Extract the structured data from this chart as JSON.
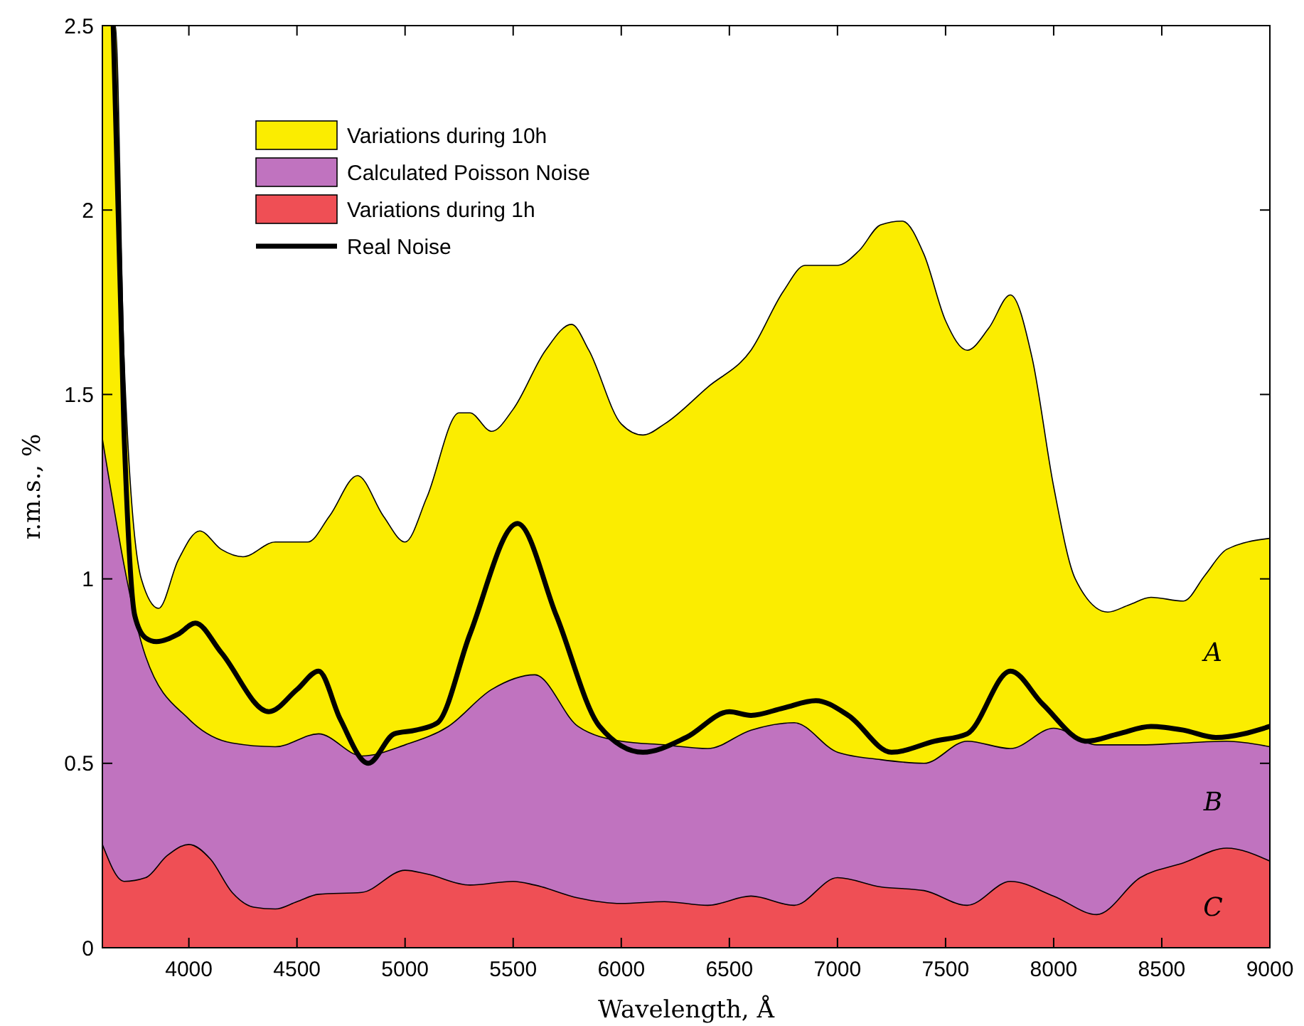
{
  "chart_data": {
    "type": "area",
    "xlabel": "Wavelength, Å",
    "ylabel": "r.m.s., %",
    "xlim": [
      3600,
      9000
    ],
    "xticks": [
      4000,
      4500,
      5000,
      5500,
      6000,
      6500,
      7000,
      7500,
      8000,
      8500,
      9000
    ],
    "ylim": [
      0,
      2.5
    ],
    "yticks": [
      0,
      0.5,
      1,
      1.5,
      2,
      2.5
    ],
    "grid": false,
    "legend": "top left",
    "series": [
      {
        "name": "Variations during 10h",
        "color": "#fbed00",
        "x": [
          3600,
          3660,
          3700,
          3780,
          3860,
          3950,
          4050,
          4150,
          4250,
          4400,
          4550,
          4650,
          4780,
          4900,
          5000,
          5100,
          5250,
          5300,
          5400,
          5500,
          5650,
          5770,
          5850,
          6000,
          6100,
          6200,
          6400,
          6600,
          6750,
          6850,
          7000,
          7100,
          7200,
          7300,
          7400,
          7500,
          7600,
          7700,
          7800,
          7900,
          8000,
          8100,
          8250,
          8350,
          8450,
          8600,
          8700,
          8800,
          9000
        ],
        "values": [
          2.5,
          2.5,
          1.6,
          1.0,
          0.92,
          1.05,
          1.13,
          1.08,
          1.06,
          1.1,
          1.1,
          1.17,
          1.28,
          1.17,
          1.1,
          1.22,
          1.45,
          1.45,
          1.4,
          1.46,
          1.62,
          1.69,
          1.62,
          1.42,
          1.39,
          1.42,
          1.52,
          1.62,
          1.78,
          1.85,
          1.85,
          1.89,
          1.96,
          1.97,
          1.88,
          1.7,
          1.62,
          1.68,
          1.77,
          1.6,
          1.25,
          1.0,
          0.91,
          0.93,
          0.95,
          0.94,
          1.01,
          1.08,
          1.11
        ]
      },
      {
        "name": "Calculated Poisson Noise",
        "color": "#c073bf",
        "x": [
          3600,
          3800,
          4000,
          4200,
          4400,
          4600,
          4800,
          5000,
          5200,
          5400,
          5600,
          5800,
          6000,
          6200,
          6400,
          6600,
          6800,
          7000,
          7200,
          7400,
          7600,
          7800,
          8000,
          8200,
          8400,
          8600,
          8800,
          9000
        ],
        "values": [
          1.38,
          0.79,
          0.62,
          0.555,
          0.545,
          0.58,
          0.52,
          0.55,
          0.6,
          0.7,
          0.74,
          0.6,
          0.56,
          0.55,
          0.54,
          0.59,
          0.61,
          0.53,
          0.51,
          0.5,
          0.56,
          0.54,
          0.595,
          0.55,
          0.55,
          0.555,
          0.56,
          0.545
        ]
      },
      {
        "name": "Variations during 1h",
        "color": "#ef4f55",
        "x": [
          3600,
          3700,
          3800,
          3900,
          4000,
          4100,
          4200,
          4300,
          4400,
          4500,
          4600,
          4800,
          5000,
          5100,
          5300,
          5500,
          5600,
          5800,
          6000,
          6200,
          6400,
          6600,
          6800,
          7000,
          7200,
          7400,
          7600,
          7800,
          8000,
          8200,
          8400,
          8600,
          8800,
          9000
        ],
        "values": [
          0.28,
          0.18,
          0.19,
          0.25,
          0.28,
          0.24,
          0.15,
          0.11,
          0.105,
          0.125,
          0.145,
          0.15,
          0.21,
          0.2,
          0.17,
          0.18,
          0.17,
          0.135,
          0.12,
          0.125,
          0.115,
          0.14,
          0.115,
          0.19,
          0.165,
          0.155,
          0.115,
          0.18,
          0.14,
          0.09,
          0.19,
          0.23,
          0.27,
          0.235
        ]
      },
      {
        "name": "Real Noise",
        "type": "line",
        "color": "#000000",
        "x": [
          3650,
          3700,
          3750,
          3800,
          3850,
          3950,
          4030,
          4150,
          4370,
          4500,
          4600,
          4700,
          4830,
          4950,
          5050,
          5150,
          5300,
          5520,
          5700,
          5900,
          6100,
          6300,
          6500,
          6600,
          6750,
          6900,
          7050,
          7250,
          7450,
          7600,
          7800,
          7950,
          8150,
          8300,
          8450,
          8600,
          8750,
          9000
        ],
        "values": [
          2.5,
          1.4,
          0.9,
          0.84,
          0.83,
          0.85,
          0.88,
          0.8,
          0.64,
          0.7,
          0.75,
          0.62,
          0.5,
          0.58,
          0.59,
          0.61,
          0.85,
          1.15,
          0.9,
          0.6,
          0.53,
          0.57,
          0.64,
          0.63,
          0.65,
          0.67,
          0.63,
          0.53,
          0.56,
          0.58,
          0.75,
          0.66,
          0.56,
          0.58,
          0.6,
          0.59,
          0.57,
          0.6
        ]
      }
    ],
    "annotations": [
      "A",
      "B",
      "C"
    ]
  }
}
